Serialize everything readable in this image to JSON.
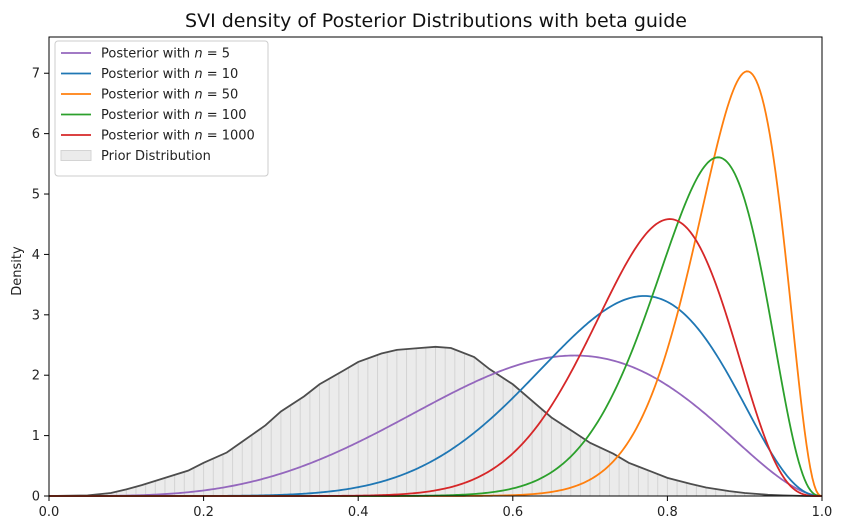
{
  "chart_data": {
    "type": "line",
    "title": "SVI density of Posterior Distributions with beta guide",
    "xlabel": "",
    "ylabel": "Density",
    "xlim": [
      0.0,
      1.0
    ],
    "ylim": [
      0,
      7.6
    ],
    "xticks": [
      "0.0",
      "0.2",
      "0.4",
      "0.6",
      "0.8",
      "1.0"
    ],
    "yticks": [
      "0",
      "1",
      "2",
      "3",
      "4",
      "5",
      "6",
      "7"
    ],
    "grid": false,
    "legend_position": "top-left",
    "series": [
      {
        "name": "Posterior with n = 5",
        "legend_prefix": "Posterior with ",
        "legend_var": "n",
        "legend_suffix": " = 5",
        "color": "#9467bd",
        "alpha": 5.08,
        "beta": 2.92
      },
      {
        "name": "Posterior with n = 10",
        "legend_prefix": "Posterior with ",
        "legend_var": "n",
        "legend_suffix": " = 10",
        "color": "#1f77b4",
        "alpha": 9.47,
        "beta": 3.53
      },
      {
        "name": "Posterior with n = 50",
        "legend_prefix": "Posterior with ",
        "legend_var": "n",
        "legend_suffix": " = 50",
        "color": "#ff7f0e",
        "alpha": 25.3,
        "beta": 3.6
      },
      {
        "name": "Posterior with n = 100",
        "legend_prefix": "Posterior with ",
        "legend_var": "n",
        "legend_suffix": " = 100",
        "color": "#2ca02c",
        "alpha": 20.3,
        "beta": 4.0
      },
      {
        "name": "Posterior with n = 1000",
        "legend_prefix": "Posterior with ",
        "legend_var": "n",
        "legend_suffix": " = 1000",
        "color": "#d62728",
        "alpha": 16.9,
        "beta": 4.9
      }
    ],
    "prior": {
      "name": "Prior Distribution",
      "line_color": "#4d4d4d",
      "fill_color": "#ebebeb",
      "x": [
        0.0,
        0.05,
        0.08,
        0.1,
        0.12,
        0.15,
        0.18,
        0.2,
        0.23,
        0.25,
        0.28,
        0.3,
        0.33,
        0.35,
        0.38,
        0.4,
        0.43,
        0.45,
        0.48,
        0.5,
        0.52,
        0.55,
        0.57,
        0.6,
        0.63,
        0.65,
        0.68,
        0.7,
        0.73,
        0.75,
        0.78,
        0.8,
        0.83,
        0.85,
        0.88,
        0.9,
        0.93,
        0.95,
        0.98,
        1.0
      ],
      "y": [
        0.0,
        0.01,
        0.05,
        0.11,
        0.18,
        0.3,
        0.42,
        0.55,
        0.72,
        0.9,
        1.17,
        1.4,
        1.65,
        1.85,
        2.07,
        2.22,
        2.36,
        2.42,
        2.45,
        2.47,
        2.45,
        2.3,
        2.1,
        1.85,
        1.52,
        1.3,
        1.05,
        0.88,
        0.7,
        0.55,
        0.4,
        0.3,
        0.2,
        0.14,
        0.08,
        0.05,
        0.02,
        0.01,
        0.0,
        0.0
      ]
    }
  }
}
